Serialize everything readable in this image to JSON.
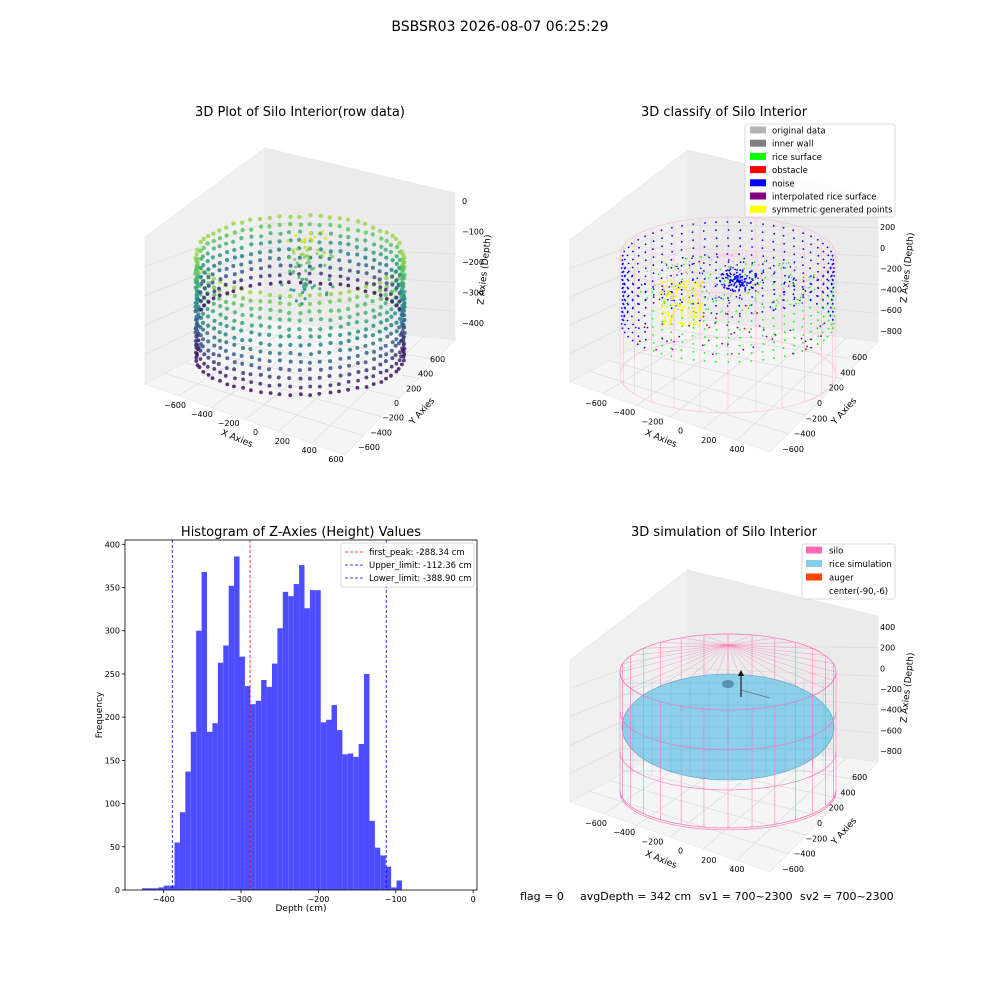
{
  "figure": {
    "suptitle": "BSBSR03 2026-08-07 06:25:29",
    "status_line": {
      "flag": "flag = 0",
      "avg_depth": "avgDepth = 342 cm",
      "sv1": "sv1 = 700~2300",
      "sv2": "sv2 = 700~2300"
    }
  },
  "colors": {
    "hist_bar": "#4d4dff",
    "first_peak": "#ff0000",
    "limit_line": "#0000cc",
    "silo": "#ff69b4",
    "rice": "#87ceeb",
    "auger": "#ff4500",
    "original": "#b3b3b3",
    "inner_wall": "#808080",
    "rice_surface": "#00ff00",
    "obstacle": "#ff0000",
    "noise": "#0000ff",
    "interpolated": "#800080",
    "symmetric": "#ffff00"
  },
  "chart_data": [
    {
      "type": "scatter",
      "title": "3D Plot of Silo Interior(row data)",
      "xlabel": "X Axies",
      "ylabel": "Y Axies",
      "zlabel": "Z Axies (Depth)",
      "x_ticks": [
        "−600",
        "−400",
        "−200",
        "0",
        "200",
        "400",
        "600"
      ],
      "y_ticks": [
        "600",
        "400",
        "200",
        "0",
        "−200",
        "−400",
        "−600"
      ],
      "z_ticks": [
        "0",
        "−100",
        "−200",
        "−300",
        "−400"
      ],
      "zlim": [
        -450,
        0
      ],
      "colormap": "viridis"
    },
    {
      "type": "scatter",
      "title": "3D classify of Silo Interior",
      "xlabel": "X Axies",
      "ylabel": "Y Axies",
      "zlabel": "Z Axies (Depth)",
      "x_ticks": [
        "−600",
        "−400",
        "−200",
        "0",
        "200",
        "400"
      ],
      "y_ticks": [
        "600",
        "400",
        "200",
        "0",
        "−200",
        "−400",
        "−600"
      ],
      "z_ticks": [
        "200",
        "0",
        "−200",
        "−400",
        "−600",
        "−800"
      ],
      "legend": [
        {
          "label": "original data",
          "color": "#b3b3b3"
        },
        {
          "label": "inner wall",
          "color": "#808080"
        },
        {
          "label": "rice surface",
          "color": "#00ff00"
        },
        {
          "label": "obstacle",
          "color": "#ff0000"
        },
        {
          "label": "noise",
          "color": "#0000ff"
        },
        {
          "label": "interpolated rice surface",
          "color": "#800080"
        },
        {
          "label": "symmetric generated points",
          "color": "#ffff00"
        }
      ],
      "legend_loc": "upper right"
    },
    {
      "type": "bar",
      "title": "Histogram of Z-Axies (Height) Values",
      "xlabel": "Depth (cm)",
      "ylabel": "Frequency",
      "xlim": [
        -450,
        5
      ],
      "ylim": [
        0,
        405
      ],
      "x_ticks": [
        -400,
        -300,
        -200,
        -100,
        0
      ],
      "y_ticks": [
        0,
        50,
        100,
        150,
        200,
        250,
        300,
        350,
        400
      ],
      "bin_width": 7.0,
      "bins_start": -428,
      "values": [
        2,
        2,
        2,
        3,
        5,
        5,
        55,
        90,
        137,
        183,
        300,
        368,
        183,
        193,
        263,
        283,
        352,
        386,
        270,
        236,
        215,
        219,
        243,
        235,
        262,
        303,
        345,
        340,
        354,
        376,
        326,
        347,
        347,
        194,
        197,
        214,
        185,
        157,
        158,
        154,
        169,
        250,
        80,
        49,
        40,
        27,
        3,
        11
      ],
      "annotations": [
        {
          "label": "first_peak: -288.34 cm",
          "value": -288.34,
          "style": "dashed",
          "color": "#ff0000"
        },
        {
          "label": "Upper_limit: -112.36 cm",
          "value": -112.36,
          "style": "dashed",
          "color": "#0000cc"
        },
        {
          "label": "Lower_limit: -388.90 cm",
          "value": -388.9,
          "style": "dashed",
          "color": "#0000cc"
        }
      ],
      "legend_loc": "upper right"
    },
    {
      "type": "scatter",
      "title": "3D simulation of Silo Interior",
      "xlabel": "X Axies",
      "ylabel": "Y Axies",
      "zlabel": "Z Axies (Depth)",
      "x_ticks": [
        "−600",
        "−400",
        "−200",
        "0",
        "200",
        "400"
      ],
      "y_ticks": [
        "600",
        "400",
        "200",
        "0",
        "−200",
        "−400",
        "−600"
      ],
      "z_ticks": [
        "400",
        "200",
        "0",
        "−200",
        "−400",
        "−600",
        "−800"
      ],
      "legend": [
        {
          "label": "silo",
          "color": "#ff69b4"
        },
        {
          "label": "rice simulation",
          "color": "#87ceeb"
        },
        {
          "label": "auger",
          "color": "#ff4500"
        },
        {
          "label": "center(-90,-6)",
          "color": ""
        }
      ],
      "legend_loc": "upper right"
    }
  ]
}
